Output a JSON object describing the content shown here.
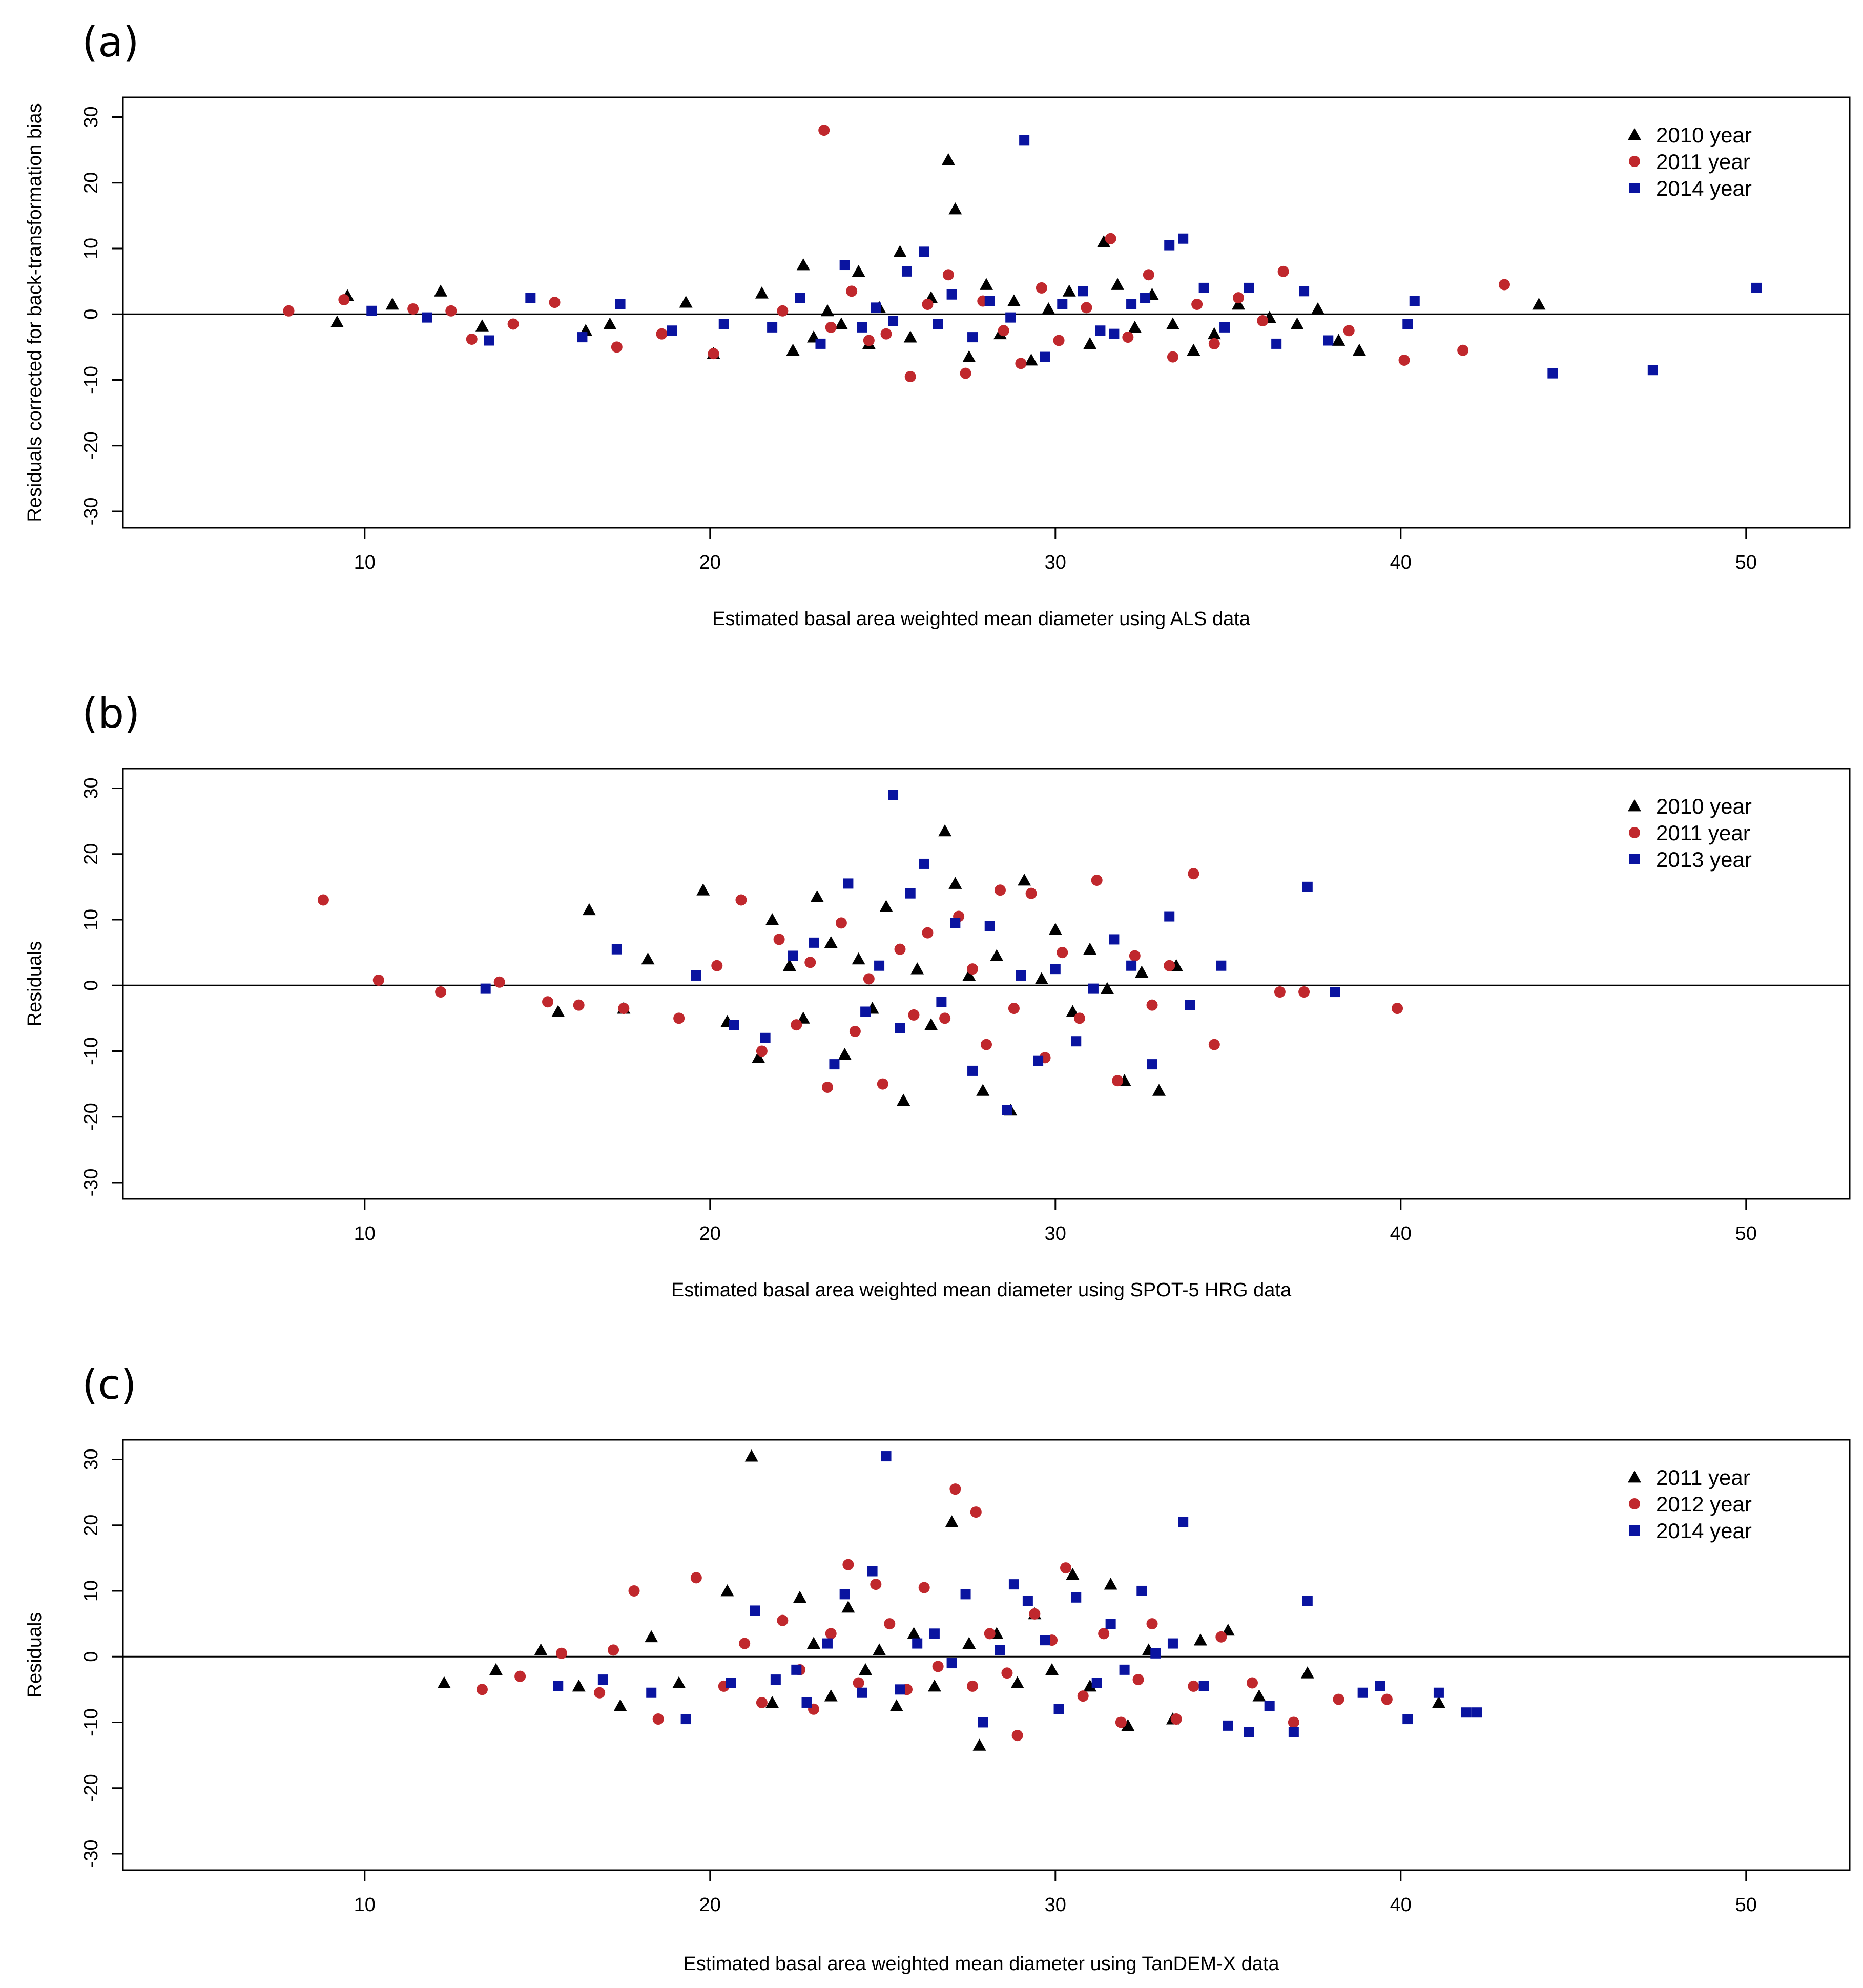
{
  "colors": {
    "black": "#000000",
    "red": "#c0282d",
    "blue": "#0a14a0"
  },
  "chart_data": [
    {
      "id": "a",
      "type": "scatter",
      "panel_label": "(a)",
      "xlabel": "Estimated basal area weighted mean diameter using ALS data",
      "ylabel": "Residuals corrected for back-transformation bias",
      "xlim": [
        3,
        53
      ],
      "ylim": [
        -32.5,
        33
      ],
      "xticks": [
        10,
        20,
        30,
        40,
        50
      ],
      "yticks": [
        -30,
        -20,
        -10,
        0,
        10,
        20,
        30
      ],
      "reference_line_y": 0,
      "legend": {
        "position": "top-right",
        "entries": [
          "2010 year",
          "2011 year",
          "2014 year"
        ]
      },
      "series": [
        {
          "name": "2010 year",
          "marker": "triangle",
          "color": "#000000",
          "x": [
            9.2,
            9.5,
            10.8,
            12.2,
            13.4,
            16.4,
            17.1,
            19.3,
            20.1,
            21.5,
            22.4,
            22.7,
            23.0,
            23.4,
            23.8,
            24.3,
            24.6,
            24.9,
            25.5,
            25.8,
            26.4,
            26.9,
            27.1,
            27.5,
            28.0,
            28.4,
            28.8,
            29.3,
            29.8,
            30.4,
            31.0,
            31.4,
            31.8,
            32.3,
            32.8,
            33.4,
            34.0,
            34.6,
            35.3,
            36.2,
            37.0,
            37.6,
            38.2,
            38.8,
            44.0
          ],
          "y": [
            -1.2,
            2.8,
            1.5,
            3.5,
            -1.8,
            -2.5,
            -1.5,
            1.8,
            -6.0,
            3.2,
            -5.5,
            7.5,
            -3.5,
            0.5,
            -1.5,
            6.5,
            -4.5,
            1.0,
            9.5,
            -3.5,
            2.5,
            23.5,
            16.0,
            -6.5,
            4.5,
            -3.0,
            2.0,
            -7.0,
            0.8,
            3.5,
            -4.5,
            11.0,
            4.5,
            -2.0,
            3.0,
            -1.5,
            -5.5,
            -3.0,
            1.5,
            -0.5,
            -1.5,
            0.8,
            -4.0,
            -5.5,
            1.5
          ]
        },
        {
          "name": "2011 year",
          "marker": "circle",
          "color": "#c0282d",
          "x": [
            7.8,
            9.4,
            11.4,
            12.5,
            13.1,
            14.3,
            15.5,
            17.3,
            18.6,
            20.1,
            22.1,
            23.3,
            23.5,
            24.1,
            24.6,
            25.1,
            25.8,
            26.3,
            26.9,
            27.4,
            27.9,
            28.5,
            29.0,
            29.6,
            30.1,
            30.9,
            31.6,
            32.1,
            32.7,
            33.4,
            34.1,
            34.6,
            35.3,
            36.0,
            36.6,
            38.5,
            40.1,
            41.8,
            43.0
          ],
          "y": [
            0.5,
            2.2,
            0.8,
            0.5,
            -3.8,
            -1.5,
            1.8,
            -5.0,
            -3.0,
            -6.0,
            0.5,
            28.0,
            -2.0,
            3.5,
            -4.0,
            -3.0,
            -9.5,
            1.5,
            6.0,
            -9.0,
            2.0,
            -2.5,
            -7.5,
            4.0,
            -4.0,
            1.0,
            11.5,
            -3.5,
            6.0,
            -6.5,
            1.5,
            -4.5,
            2.5,
            -1.0,
            6.5,
            -2.5,
            -7.0,
            -5.5,
            4.5
          ]
        },
        {
          "name": "2014 year",
          "marker": "square",
          "color": "#0a14a0",
          "x": [
            10.2,
            11.8,
            13.6,
            14.8,
            16.3,
            17.4,
            18.9,
            20.4,
            21.8,
            22.6,
            23.2,
            23.9,
            24.4,
            24.8,
            25.3,
            25.7,
            26.2,
            26.6,
            27.0,
            27.6,
            28.1,
            28.7,
            29.1,
            29.7,
            30.2,
            30.8,
            31.3,
            31.7,
            32.2,
            32.6,
            33.3,
            33.7,
            34.3,
            34.9,
            35.6,
            36.4,
            37.2,
            37.9,
            40.2,
            40.4,
            44.4,
            47.3,
            50.3
          ],
          "y": [
            0.5,
            -0.5,
            -4.0,
            2.5,
            -3.5,
            1.5,
            -2.5,
            -1.5,
            -2.0,
            2.5,
            -4.5,
            7.5,
            -2.0,
            1.0,
            -1.0,
            6.5,
            9.5,
            -1.5,
            3.0,
            -3.5,
            2.0,
            -0.5,
            26.5,
            -6.5,
            1.5,
            3.5,
            -2.5,
            -3.0,
            1.5,
            2.5,
            10.5,
            11.5,
            4.0,
            -2.0,
            4.0,
            -4.5,
            3.5,
            -4.0,
            -1.5,
            2.0,
            -9.0,
            -8.5,
            4.0
          ]
        }
      ]
    },
    {
      "id": "b",
      "type": "scatter",
      "panel_label": "(b)",
      "xlabel": "Estimated basal area weighted mean diameter using SPOT-5 HRG data",
      "ylabel": "Residuals",
      "xlim": [
        3,
        53
      ],
      "ylim": [
        -32.5,
        33
      ],
      "xticks": [
        10,
        20,
        30,
        40,
        50
      ],
      "yticks": [
        -30,
        -20,
        -10,
        0,
        10,
        20,
        30
      ],
      "reference_line_y": 0,
      "legend": {
        "position": "top-right",
        "entries": [
          "2010 year",
          "2011 year",
          "2013 year"
        ]
      },
      "series": [
        {
          "name": "2010 year",
          "marker": "triangle",
          "color": "#000000",
          "x": [
            15.6,
            16.5,
            17.5,
            18.2,
            19.8,
            20.5,
            21.4,
            21.8,
            22.3,
            22.7,
            23.1,
            23.5,
            23.9,
            24.3,
            24.7,
            25.1,
            25.6,
            26.0,
            26.4,
            26.8,
            27.1,
            27.5,
            27.9,
            28.3,
            28.7,
            29.1,
            29.6,
            30.0,
            30.5,
            31.0,
            31.5,
            32.0,
            32.5,
            33.0,
            33.5
          ],
          "y": [
            -4.0,
            11.5,
            -3.5,
            4.0,
            14.5,
            -5.5,
            -11.0,
            10.0,
            3.0,
            -5.0,
            13.5,
            6.5,
            -10.5,
            4.0,
            -3.5,
            12.0,
            -17.5,
            2.5,
            -6.0,
            23.5,
            15.5,
            1.5,
            -16.0,
            4.5,
            -19.0,
            16.0,
            1.0,
            8.5,
            -4.0,
            5.5,
            -0.5,
            -14.5,
            2.0,
            -16.0,
            3.0
          ]
        },
        {
          "name": "2011 year",
          "marker": "circle",
          "color": "#c0282d",
          "x": [
            8.8,
            10.4,
            12.2,
            13.9,
            15.3,
            16.2,
            17.5,
            19.1,
            20.2,
            20.9,
            21.5,
            22.0,
            22.5,
            22.9,
            23.4,
            23.8,
            24.2,
            24.6,
            25.0,
            25.5,
            25.9,
            26.3,
            26.8,
            27.2,
            27.6,
            28.0,
            28.4,
            28.8,
            29.3,
            29.7,
            30.2,
            30.7,
            31.2,
            31.8,
            32.3,
            32.8,
            33.3,
            34.0,
            34.6,
            36.5,
            37.2,
            39.9
          ],
          "y": [
            13.0,
            0.8,
            -1.0,
            0.5,
            -2.5,
            -3.0,
            -3.5,
            -5.0,
            3.0,
            13.0,
            -10.0,
            7.0,
            -6.0,
            3.5,
            -15.5,
            9.5,
            -7.0,
            1.0,
            -15.0,
            5.5,
            -4.5,
            8.0,
            -5.0,
            10.5,
            2.5,
            -9.0,
            14.5,
            -3.5,
            14.0,
            -11.0,
            5.0,
            -5.0,
            16.0,
            -14.5,
            4.5,
            -3.0,
            3.0,
            17.0,
            -9.0,
            -1.0,
            -1.0,
            -3.5
          ]
        },
        {
          "name": "2013 year",
          "marker": "square",
          "color": "#0a14a0",
          "x": [
            13.5,
            17.3,
            19.6,
            20.7,
            21.6,
            22.4,
            23.0,
            23.6,
            24.0,
            24.5,
            24.9,
            25.3,
            25.5,
            25.8,
            26.2,
            26.7,
            27.1,
            27.6,
            28.1,
            28.6,
            29.0,
            29.5,
            30.0,
            30.6,
            31.1,
            31.7,
            32.2,
            32.8,
            33.3,
            33.9,
            34.8,
            37.3,
            38.1
          ],
          "y": [
            -0.5,
            5.5,
            1.5,
            -6.0,
            -8.0,
            4.5,
            6.5,
            -12.0,
            15.5,
            -4.0,
            3.0,
            29.0,
            -6.5,
            14.0,
            18.5,
            -2.5,
            9.5,
            -13.0,
            9.0,
            -19.0,
            1.5,
            -11.5,
            2.5,
            -8.5,
            -0.5,
            7.0,
            3.0,
            -12.0,
            10.5,
            -3.0,
            3.0,
            15.0,
            -1.0
          ]
        }
      ]
    },
    {
      "id": "c",
      "type": "scatter",
      "panel_label": "(c)",
      "xlabel": "Estimated basal area weighted mean diameter using TanDEM-X data",
      "ylabel": "Residuals",
      "xlim": [
        3,
        53
      ],
      "ylim": [
        -32.5,
        33
      ],
      "xticks": [
        10,
        20,
        30,
        40,
        50
      ],
      "yticks": [
        -30,
        -20,
        -10,
        0,
        10,
        20,
        30
      ],
      "reference_line_y": 0,
      "legend": {
        "position": "top-right",
        "entries": [
          "2011 year",
          "2012 year",
          "2014 year"
        ]
      },
      "series": [
        {
          "name": "2011 year",
          "marker": "triangle",
          "color": "#000000",
          "x": [
            12.3,
            13.8,
            15.1,
            16.2,
            17.4,
            18.3,
            19.1,
            20.5,
            21.2,
            21.8,
            22.6,
            23.0,
            23.5,
            24.0,
            24.5,
            24.9,
            25.4,
            25.9,
            26.5,
            27.0,
            27.5,
            27.8,
            28.3,
            28.9,
            29.4,
            29.9,
            30.5,
            31.0,
            31.6,
            32.1,
            32.7,
            33.4,
            34.2,
            35.0,
            35.9,
            37.3,
            41.1
          ],
          "y": [
            -4.0,
            -2.0,
            1.0,
            -4.5,
            -7.5,
            3.0,
            -4.0,
            10.0,
            30.5,
            -7.0,
            9.0,
            2.0,
            -6.0,
            7.5,
            -2.0,
            1.0,
            -7.5,
            3.5,
            -4.5,
            20.5,
            2.0,
            -13.5,
            3.5,
            -4.0,
            6.5,
            -2.0,
            12.5,
            -4.5,
            11.0,
            -10.5,
            1.0,
            -9.5,
            2.5,
            4.0,
            -6.0,
            -2.5,
            -7.0
          ]
        },
        {
          "name": "2012 year",
          "marker": "circle",
          "color": "#c0282d",
          "x": [
            13.4,
            14.5,
            15.7,
            16.8,
            17.2,
            17.8,
            18.5,
            19.6,
            20.4,
            21.0,
            21.5,
            22.1,
            22.6,
            23.0,
            23.5,
            24.0,
            24.3,
            24.8,
            25.2,
            25.7,
            26.2,
            26.6,
            27.1,
            27.6,
            27.7,
            28.1,
            28.6,
            28.9,
            29.4,
            29.9,
            30.3,
            30.8,
            31.4,
            31.9,
            32.4,
            32.8,
            33.5,
            34.0,
            34.8,
            35.7,
            36.9,
            38.2,
            39.6
          ],
          "y": [
            -5.0,
            -3.0,
            0.5,
            -5.5,
            1.0,
            10.0,
            -9.5,
            12.0,
            -4.5,
            2.0,
            -7.0,
            5.5,
            -2.0,
            -8.0,
            3.5,
            14.0,
            -4.0,
            11.0,
            5.0,
            -5.0,
            10.5,
            -1.5,
            25.5,
            -4.5,
            22.0,
            3.5,
            -2.5,
            -12.0,
            6.5,
            2.5,
            13.5,
            -6.0,
            3.5,
            -10.0,
            -3.5,
            5.0,
            -9.5,
            -4.5,
            3.0,
            -4.0,
            -10.0,
            -6.5,
            -6.5
          ]
        },
        {
          "name": "2014 year",
          "marker": "square",
          "color": "#0a14a0",
          "x": [
            15.6,
            16.9,
            18.3,
            19.3,
            20.6,
            21.3,
            21.9,
            22.5,
            22.8,
            23.4,
            23.9,
            24.4,
            24.7,
            25.1,
            25.5,
            26.0,
            26.5,
            27.0,
            27.4,
            27.9,
            28.4,
            28.8,
            29.2,
            29.7,
            30.1,
            30.6,
            31.2,
            31.6,
            32.0,
            32.5,
            32.9,
            33.4,
            33.7,
            34.3,
            35.0,
            35.6,
            36.2,
            36.9,
            37.3,
            38.9,
            39.4,
            40.2,
            41.1,
            41.9,
            42.2
          ],
          "y": [
            -4.5,
            -3.5,
            -5.5,
            -9.5,
            -4.0,
            7.0,
            -3.5,
            -2.0,
            -7.0,
            2.0,
            9.5,
            -5.5,
            13.0,
            30.5,
            -5.0,
            2.0,
            3.5,
            -1.0,
            9.5,
            -10.0,
            1.0,
            11.0,
            8.5,
            2.5,
            -8.0,
            9.0,
            -4.0,
            5.0,
            -2.0,
            10.0,
            0.5,
            2.0,
            20.5,
            -4.5,
            -10.5,
            -11.5,
            -7.5,
            -11.5,
            8.5,
            -5.5,
            -4.5,
            -9.5,
            -5.5,
            -8.5,
            -8.5
          ]
        }
      ]
    }
  ]
}
